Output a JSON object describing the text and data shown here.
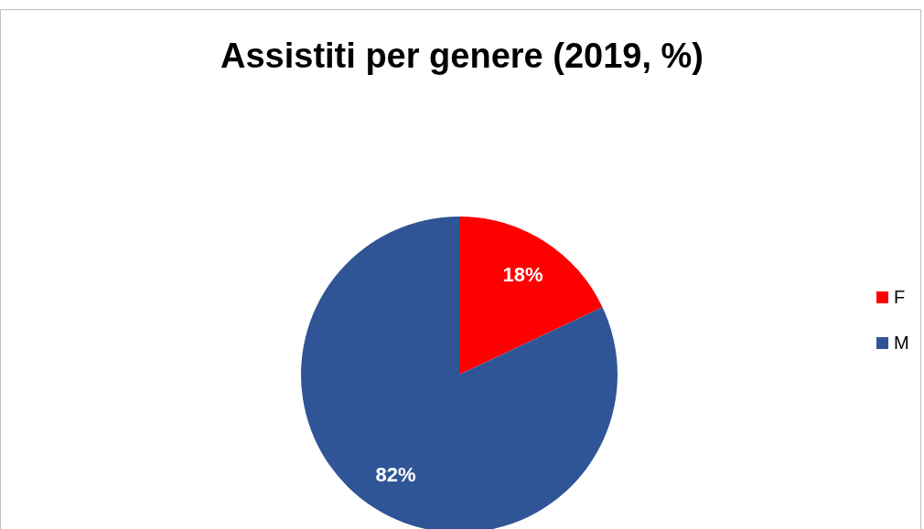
{
  "chart_data": {
    "type": "pie",
    "title": "Assistiti per genere (2019, %)",
    "categories": [
      "F",
      "M"
    ],
    "values": [
      18,
      82
    ],
    "colors": [
      "#ff0000",
      "#2f5597"
    ],
    "value_labels": [
      "18%",
      "82%"
    ],
    "legend": "right"
  }
}
